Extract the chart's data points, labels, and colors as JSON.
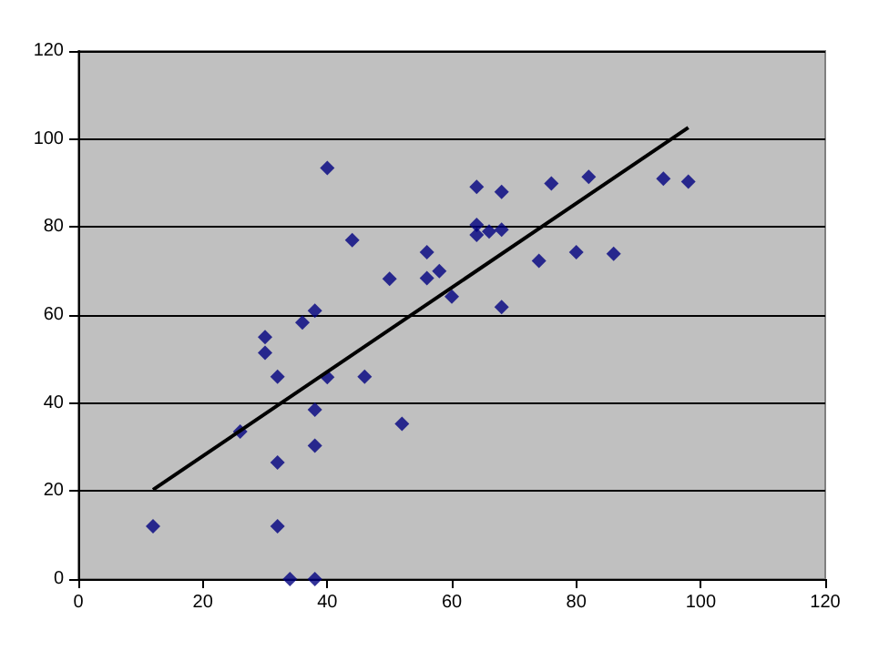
{
  "chart_data": {
    "type": "scatter",
    "xlim": [
      0,
      120
    ],
    "ylim": [
      0,
      120
    ],
    "xticks": [
      0,
      20,
      40,
      60,
      80,
      100,
      120
    ],
    "yticks": [
      0,
      20,
      40,
      60,
      80,
      100,
      120
    ],
    "grid": "y",
    "marker": "diamond",
    "series": [
      {
        "color": "#000080",
        "x": [
          12,
          26,
          30,
          30,
          32,
          32,
          32,
          34,
          36,
          38,
          38,
          38,
          38,
          40,
          40,
          44,
          46,
          50,
          52,
          56,
          56,
          58,
          60,
          64,
          68,
          64,
          64,
          66,
          68,
          68,
          74,
          76,
          80,
          82,
          86,
          94,
          98
        ],
        "values": [
          12,
          33.5,
          55,
          51.4,
          46,
          26.5,
          12,
          0,
          58.3,
          61,
          38.5,
          30.3,
          0,
          45.9,
          93.4,
          77,
          46,
          68.2,
          35.3,
          74.3,
          68.4,
          70,
          64.2,
          89.1,
          88,
          80.5,
          78.2,
          79,
          79.4,
          61.8,
          72.3,
          89.9,
          74.3,
          91.4,
          73.9,
          91,
          90.3
        ]
      },
      {
        "type": "line",
        "color": "#000000",
        "marker": "none",
        "x": [
          12,
          98
        ],
        "values": [
          20.3,
          102.6
        ]
      }
    ]
  }
}
